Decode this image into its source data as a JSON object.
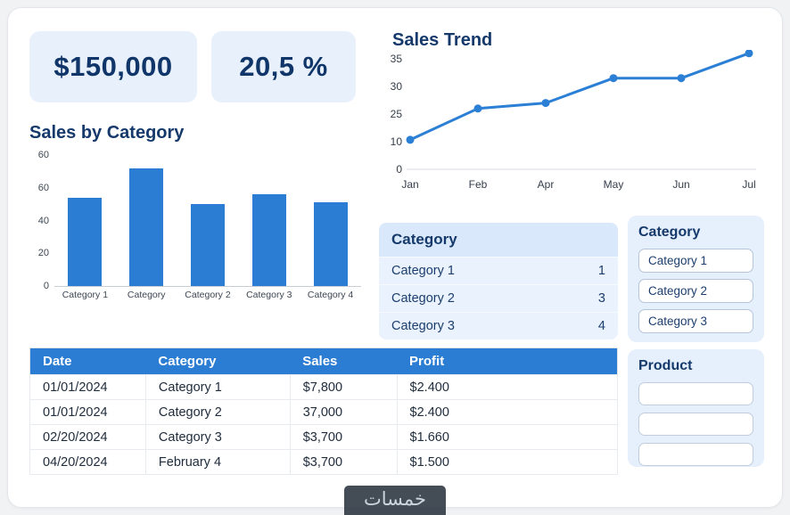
{
  "kpis": {
    "total_sales": "$150,000",
    "growth": "20,5 %"
  },
  "chart_data": [
    {
      "type": "line",
      "title": "Sales Trend",
      "x": [
        "Jan",
        "Feb",
        "Apr",
        "May",
        "Jun",
        "Jul"
      ],
      "values": [
        11,
        26,
        27,
        31.5,
        31.5,
        36
      ],
      "ytick_values": [
        0,
        10,
        25,
        30,
        35
      ],
      "ylim": [
        0,
        37
      ],
      "color": "#2b7fd4",
      "legend": "none",
      "grid": "off"
    },
    {
      "type": "bar",
      "title": "Sales by Category",
      "categories": [
        "Category 1",
        "Category",
        "Category 2",
        "Category 3",
        "Category 4"
      ],
      "values": [
        54,
        72,
        50,
        56,
        51
      ],
      "ytick_labels": [
        "0",
        "20",
        "40",
        "60",
        "60"
      ],
      "ylim": [
        0,
        80
      ],
      "color": "#2b7cd3",
      "legend": "none",
      "grid": "off"
    }
  ],
  "summary": {
    "title": "Category",
    "rows": [
      {
        "label": "Category 1",
        "value": "1"
      },
      {
        "label": "Category 2",
        "value": "3"
      },
      {
        "label": "Category 3",
        "value": "4"
      }
    ]
  },
  "category_filter": {
    "title": "Category",
    "options": [
      "Category 1",
      "Category 2",
      "Category 3"
    ]
  },
  "product_filter": {
    "title": "Product",
    "inputs": [
      "",
      "",
      ""
    ]
  },
  "table": {
    "headers": [
      "Date",
      "Category",
      "Sales",
      "Profit"
    ],
    "rows": [
      [
        "01/01/2024",
        "Category 1",
        "$7,800",
        "$2.400"
      ],
      [
        "01/01/2024",
        "Category 2",
        "37,000",
        "$2.400"
      ],
      [
        "02/20/2024",
        "Category 3",
        "$3,700",
        "$1.660"
      ],
      [
        "04/20/2024",
        "February 4",
        "$3,700",
        "$1.500"
      ]
    ]
  },
  "watermark": "خمسات",
  "colors": {
    "accent": "#2b7cd3",
    "navy_text": "#15396b",
    "kpi_bg": "#e8f0fc",
    "panel_bg": "#e6effc",
    "summary_header_bg": "#d9e9fb",
    "summary_row_bg": "#e9f2fd"
  }
}
